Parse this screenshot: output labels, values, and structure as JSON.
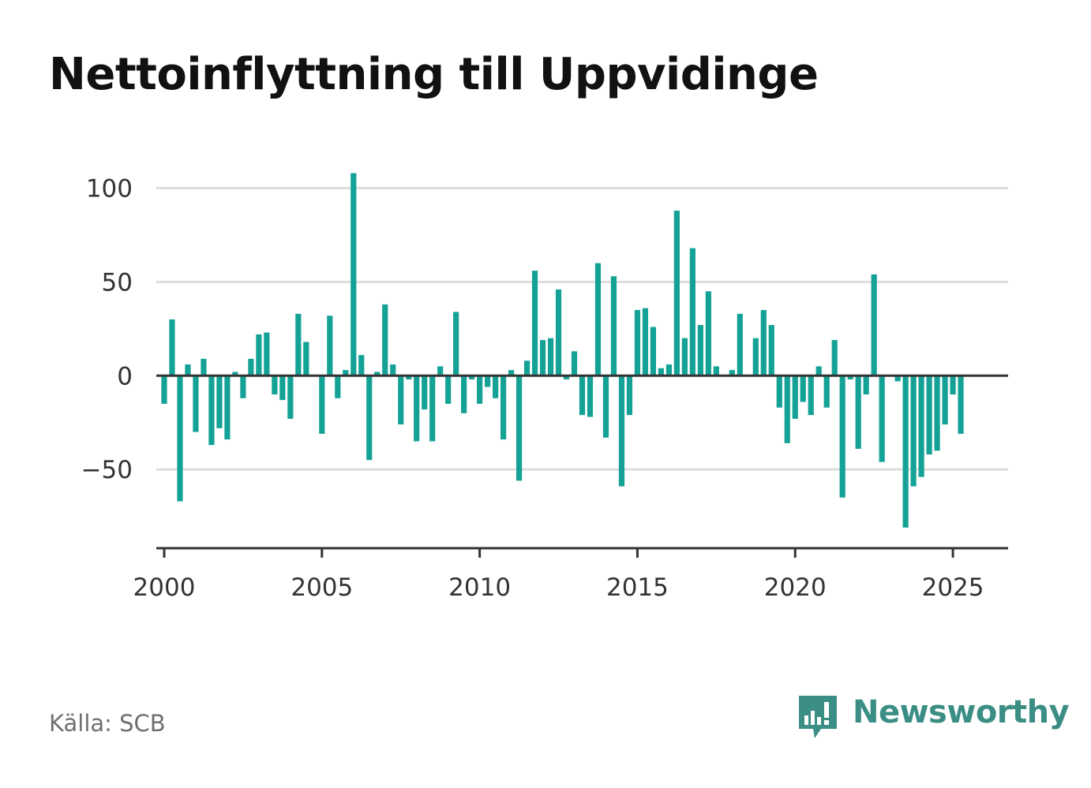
{
  "title": "Nettoinflyttning till Uppvidinge",
  "source": "Källa: SCB",
  "brand": {
    "name": "Newsworthy",
    "color": "#3b8e84"
  },
  "colors": {
    "bar": "#14a296",
    "grid": "#dddddd",
    "zero_line": "#333333",
    "axis": "#333333"
  },
  "chart_data": {
    "type": "bar",
    "title": "Nettoinflyttning till Uppvidinge",
    "xlabel": "",
    "ylabel": "",
    "grid": true,
    "ylim": [
      -92,
      112
    ],
    "xlim": [
      1999.75,
      2026.75
    ],
    "yticks": [
      100,
      50,
      0,
      -50
    ],
    "ytick_labels": [
      "100",
      "50",
      "0",
      "−50"
    ],
    "xticks": [
      2000,
      2005,
      2010,
      2015,
      2020,
      2025
    ],
    "xtick_labels": [
      "2000",
      "2005",
      "2010",
      "2015",
      "2020",
      "2025"
    ],
    "frequency": "quarterly",
    "start_period": "2000Q1",
    "values": [
      -15,
      30,
      -67,
      6,
      -30,
      9,
      -37,
      -28,
      -34,
      2,
      -12,
      9,
      22,
      23,
      -10,
      -13,
      -23,
      33,
      18,
      0,
      -31,
      32,
      -12,
      3,
      108,
      11,
      -45,
      2,
      38,
      6,
      -26,
      -2,
      -35,
      -18,
      -35,
      5,
      -15,
      34,
      -20,
      -2,
      -15,
      -6,
      -12,
      -34,
      3,
      -56,
      8,
      56,
      19,
      20,
      46,
      -2,
      13,
      -21,
      -22,
      60,
      -33,
      53,
      -59,
      -21,
      35,
      36,
      26,
      4,
      6,
      88,
      20,
      68,
      27,
      45,
      5,
      0,
      3,
      33,
      0,
      20,
      35,
      27,
      -17,
      -36,
      -23,
      -14,
      -21,
      5,
      -17,
      19,
      -65,
      -2,
      -39,
      -10,
      54,
      -46,
      0,
      -3,
      -81,
      -59,
      -54,
      -42,
      -40,
      -26,
      -10,
      -31
    ]
  }
}
